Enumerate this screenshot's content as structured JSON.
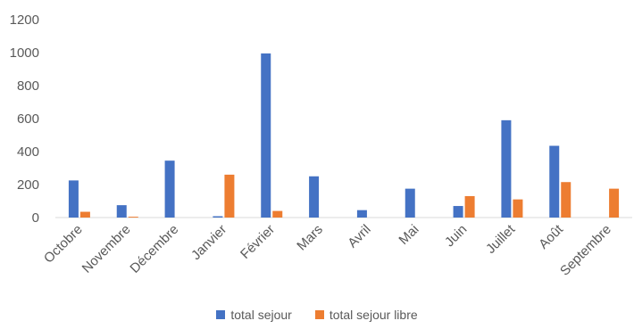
{
  "chart_data": {
    "type": "bar",
    "title": "",
    "xlabel": "",
    "ylabel": "",
    "ylim": [
      0,
      1200
    ],
    "yticks": [
      0,
      200,
      400,
      600,
      800,
      1000,
      1200
    ],
    "grid": false,
    "legend_position": "bottom",
    "categories": [
      "Octobre",
      "Novembre",
      "Décembre",
      "Janvier",
      "Février",
      "Mars",
      "Avril",
      "Mai",
      "Juin",
      "Juillet",
      "Août",
      "Septembre"
    ],
    "series": [
      {
        "name": "total sejour",
        "color": "#4472C4",
        "values": [
          225,
          75,
          345,
          8,
          995,
          250,
          45,
          175,
          70,
          590,
          435,
          0
        ]
      },
      {
        "name": "total sejour libre",
        "color": "#ED7D31",
        "values": [
          35,
          5,
          0,
          260,
          40,
          0,
          0,
          0,
          130,
          110,
          215,
          175
        ]
      }
    ]
  }
}
